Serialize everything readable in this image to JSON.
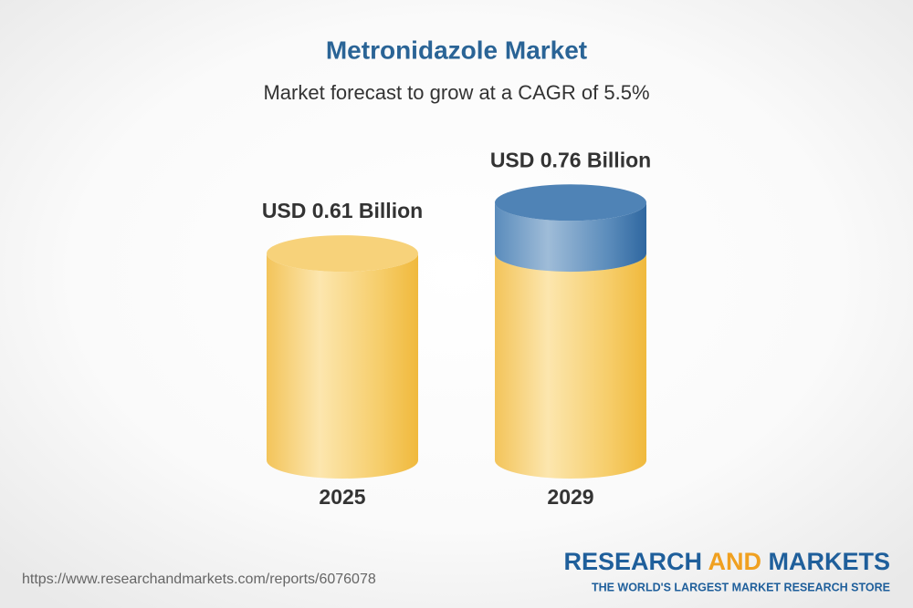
{
  "chart_data": {
    "type": "bar",
    "title": "Metronidazole Market",
    "subtitle": "Market forecast to grow at a CAGR of 5.5%",
    "categories": [
      "2025",
      "2029"
    ],
    "values": [
      0.61,
      0.76
    ],
    "value_labels": [
      "USD 0.61 Billion",
      "USD 0.76 Billion"
    ],
    "color": "#f2bf4a",
    "growth_color": "#3d74a8"
  },
  "footer": {
    "url": "https://www.researchandmarkets.com/reports/6076078",
    "brand": [
      "RESEARCH",
      "AND",
      "MARKETS"
    ],
    "tagline": "THE WORLD'S LARGEST MARKET RESEARCH STORE"
  }
}
